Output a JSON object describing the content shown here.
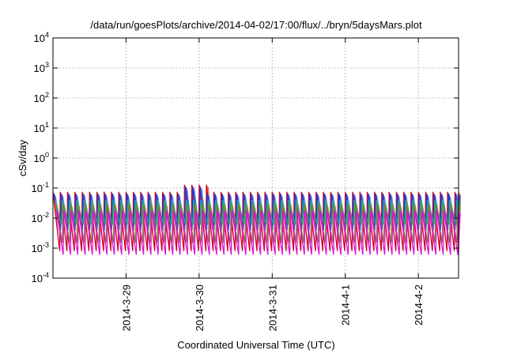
{
  "chart_data": {
    "type": "line",
    "title": "/data/run/goesPlots/archive/2014-04-02/17:00/flux/../bryn/5daysMars.plot",
    "xlabel": "Coordinated Universal Time (UTC)",
    "ylabel": "cSv/day",
    "yscale": "log",
    "ylim": [
      0.0001,
      10000
    ],
    "y_ticks": [
      {
        "value": 0.0001,
        "base": "10",
        "exp": "-4"
      },
      {
        "value": 0.001,
        "base": "10",
        "exp": "-3"
      },
      {
        "value": 0.01,
        "base": "10",
        "exp": "-2"
      },
      {
        "value": 0.1,
        "base": "10",
        "exp": "-1"
      },
      {
        "value": 1,
        "base": "10",
        "exp": "0"
      },
      {
        "value": 10,
        "base": "10",
        "exp": "1"
      },
      {
        "value": 100,
        "base": "10",
        "exp": "2"
      },
      {
        "value": 1000,
        "base": "10",
        "exp": "3"
      },
      {
        "value": 10000,
        "base": "10",
        "exp": "4"
      }
    ],
    "xlim_days": [
      0,
      5.55
    ],
    "x_ticks": [
      {
        "label": "2014-3-29",
        "day": 1.0
      },
      {
        "label": "2014-3-30",
        "day": 2.0
      },
      {
        "label": "2014-3-31",
        "day": 3.0
      },
      {
        "label": "2014-4-1",
        "day": 4.0
      },
      {
        "label": "2014-4-2",
        "day": 5.0
      }
    ],
    "grid": true,
    "cycles_per_day": 10,
    "series": [
      {
        "name": "red",
        "color": "#d0021b",
        "peak": 0.075,
        "trough": 0.0008
      },
      {
        "name": "dark-blue",
        "color": "#1a3fd6",
        "peak": 0.065,
        "trough": 0.004
      },
      {
        "name": "teal",
        "color": "#11a5a5",
        "peak": 0.04,
        "trough": 0.006
      },
      {
        "name": "olive",
        "color": "#7a8a2a",
        "peak": 0.03,
        "trough": 0.0015
      },
      {
        "name": "magenta",
        "color": "#e010d6",
        "peak": 0.018,
        "trough": 0.0006
      }
    ],
    "anomaly": {
      "day_start": 1.75,
      "day_end": 2.1,
      "peak": 0.13
    }
  }
}
